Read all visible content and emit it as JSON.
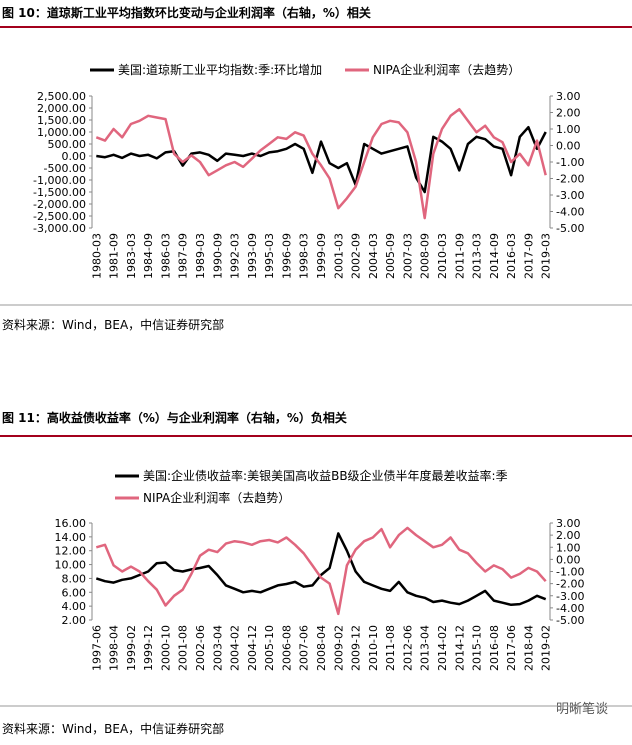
{
  "chart_data": [
    {
      "type": "line",
      "title": "图 10：道琼斯工业平均指数环比变动与企业利润率（右轴，%）相关",
      "note": "资料来源：Wind，BEA，中信证券研究部",
      "categories": [
        "1980-03",
        null,
        "1981-09",
        null,
        "1983-03",
        null,
        "1984-09",
        null,
        "1986-03",
        null,
        "1987-09",
        null,
        "1989-03",
        null,
        "1990-09",
        null,
        "1992-03",
        null,
        "1993-09",
        null,
        "1995-03",
        null,
        "1996-09",
        null,
        "1998-03",
        null,
        "1999-09",
        null,
        "2001-03",
        null,
        "2002-09",
        null,
        "2004-03",
        null,
        "2005-09",
        null,
        "2007-03",
        null,
        "2008-09",
        null,
        "2010-03",
        null,
        "2011-09",
        null,
        "2013-03",
        null,
        "2014-09",
        null,
        "2016-03",
        null,
        "2017-09",
        null,
        "2019-03"
      ],
      "series": [
        {
          "name": "美国:道琼斯工业平均指数:季:环比增加",
          "color": "#000000",
          "axis": "y",
          "values": [
            0,
            -50,
            50,
            -80,
            100,
            0,
            50,
            -100,
            150,
            200,
            -400,
            100,
            150,
            50,
            -200,
            100,
            50,
            0,
            100,
            0,
            150,
            200,
            300,
            500,
            300,
            -700,
            600,
            -300,
            -500,
            -300,
            -1200,
            500,
            300,
            100,
            200,
            300,
            400,
            -900,
            -1500,
            800,
            600,
            300,
            -600,
            500,
            800,
            700,
            400,
            300,
            -800,
            800,
            1200,
            300,
            1000
          ]
        },
        {
          "name": "NIPA企业利润率（去趋势）",
          "color": "#e0667e",
          "axis": "y2",
          "values": [
            0.5,
            0.3,
            1.0,
            0.5,
            1.3,
            1.5,
            1.8,
            1.7,
            1.6,
            -0.5,
            -1.0,
            -0.6,
            -1.0,
            -1.8,
            -1.5,
            -1.2,
            -1.0,
            -1.3,
            -0.8,
            -0.3,
            0.1,
            0.5,
            0.4,
            0.8,
            0.6,
            -0.5,
            -1.2,
            -2.0,
            -3.8,
            -3.2,
            -2.5,
            -1.0,
            0.5,
            1.3,
            1.5,
            1.4,
            0.8,
            -1.0,
            -4.4,
            -0.5,
            1.0,
            1.8,
            2.2,
            1.5,
            0.8,
            1.2,
            0.5,
            0.2,
            -1.0,
            -0.5,
            -1.2,
            0.3,
            -1.8
          ]
        }
      ],
      "ylim": [
        -3000,
        2500
      ],
      "yticks": [
        {
          "value": 2500,
          "label": "2,500.00"
        },
        {
          "value": 2000,
          "label": "2,000.00"
        },
        {
          "value": 1500,
          "label": "1,500.00"
        },
        {
          "value": 1000,
          "label": "1,000.00"
        },
        {
          "value": 500,
          "label": "500.00"
        },
        {
          "value": 0,
          "label": "0.00"
        },
        {
          "value": -500,
          "label": "-500.00"
        },
        {
          "value": -1000,
          "label": "-1,000.00"
        },
        {
          "value": -1500,
          "label": "-1,500.00"
        },
        {
          "value": -2000,
          "label": "-2,000.00"
        },
        {
          "value": -2500,
          "label": "-2,500.00"
        },
        {
          "value": -3000,
          "label": "-3,000.00"
        }
      ],
      "y2lim": [
        -5,
        3
      ],
      "y2ticks": [
        {
          "value": 3,
          "label": "3.00"
        },
        {
          "value": 2,
          "label": "2.00"
        },
        {
          "value": 1,
          "label": "1.00"
        },
        {
          "value": 0,
          "label": "0.00"
        },
        {
          "value": -1,
          "label": "-1.00"
        },
        {
          "value": -2,
          "label": "-2.00"
        },
        {
          "value": -3,
          "label": "-3.00"
        },
        {
          "value": -4,
          "label": "-4.00"
        },
        {
          "value": -5,
          "label": "-5.00"
        }
      ],
      "grid": false
    },
    {
      "type": "line",
      "title": "图 11：高收益债收益率（%）与企业利润率（右轴，%）负相关",
      "note": "资料来源：Wind，BEA，中信证券研究部",
      "categories": [
        "1997-06",
        null,
        "1998-04",
        null,
        "1999-02",
        null,
        "1999-12",
        null,
        "2000-10",
        null,
        "2001-08",
        null,
        "2002-06",
        null,
        "2003-04",
        null,
        "2004-02",
        null,
        "2004-12",
        null,
        "2005-10",
        null,
        "2006-08",
        null,
        "2007-06",
        null,
        "2008-04",
        null,
        "2009-02",
        null,
        "2009-12",
        null,
        "2010-10",
        null,
        "2011-08",
        null,
        "2012-06",
        null,
        "2013-04",
        null,
        "2014-02",
        null,
        "2014-12",
        null,
        "2015-10",
        null,
        "2016-08",
        null,
        "2017-06",
        null,
        "2018-04",
        null,
        "2019-02"
      ],
      "series": [
        {
          "name": "美国:企业债收益率:美银美国高收益BB级企业债半年度最差收益率:季",
          "color": "#000000",
          "axis": "y",
          "values": [
            8.0,
            7.6,
            7.4,
            7.8,
            8.0,
            8.5,
            9.0,
            10.2,
            10.3,
            9.2,
            9.0,
            9.3,
            9.5,
            9.8,
            8.5,
            7.0,
            6.5,
            6.0,
            6.2,
            6.0,
            6.5,
            7.0,
            7.2,
            7.5,
            6.8,
            7.0,
            8.5,
            9.5,
            14.5,
            12.0,
            9.0,
            7.5,
            7.0,
            6.5,
            6.2,
            7.5,
            6.0,
            5.5,
            5.2,
            4.6,
            4.8,
            4.5,
            4.3,
            4.8,
            5.5,
            6.2,
            4.8,
            4.5,
            4.2,
            4.3,
            4.8,
            5.5,
            5.0
          ]
        },
        {
          "name": "NIPA企业利润率（去趋势）",
          "color": "#e0667e",
          "axis": "y2",
          "values": [
            1.0,
            1.2,
            -0.5,
            -1.0,
            -0.6,
            -1.0,
            -1.8,
            -2.5,
            -3.8,
            -3.0,
            -2.5,
            -1.2,
            0.3,
            0.8,
            0.6,
            1.3,
            1.5,
            1.4,
            1.2,
            1.5,
            1.6,
            1.4,
            1.8,
            1.2,
            0.5,
            -0.5,
            -1.5,
            -2.0,
            -4.5,
            -0.5,
            0.8,
            1.5,
            1.8,
            2.5,
            1.0,
            2.0,
            2.6,
            2.0,
            1.5,
            1.0,
            1.2,
            1.8,
            0.8,
            0.5,
            -0.3,
            -1.0,
            -0.5,
            -0.8,
            -1.5,
            -1.2,
            -0.7,
            -1.0,
            -1.8
          ]
        }
      ],
      "ylim": [
        2,
        16
      ],
      "yticks": [
        {
          "value": 16,
          "label": "16.00"
        },
        {
          "value": 14,
          "label": "14.00"
        },
        {
          "value": 12,
          "label": "12.00"
        },
        {
          "value": 10,
          "label": "10.00"
        },
        {
          "value": 8,
          "label": "8.00"
        },
        {
          "value": 6,
          "label": "6.00"
        },
        {
          "value": 4,
          "label": "4.00"
        },
        {
          "value": 2,
          "label": "2.00"
        }
      ],
      "y2lim": [
        -5,
        3
      ],
      "y2ticks": [
        {
          "value": 3,
          "label": "3.00"
        },
        {
          "value": 2,
          "label": "2.00"
        },
        {
          "value": 1,
          "label": "1.00"
        },
        {
          "value": 0,
          "label": "0.00"
        },
        {
          "value": -1,
          "label": "-1.00"
        },
        {
          "value": -2,
          "label": "-2.00"
        },
        {
          "value": -3,
          "label": "-3.00"
        },
        {
          "value": -4,
          "label": "-4.00"
        },
        {
          "value": -5,
          "label": "-5.00"
        }
      ],
      "grid": false
    }
  ],
  "watermark": "明晰笔谈"
}
